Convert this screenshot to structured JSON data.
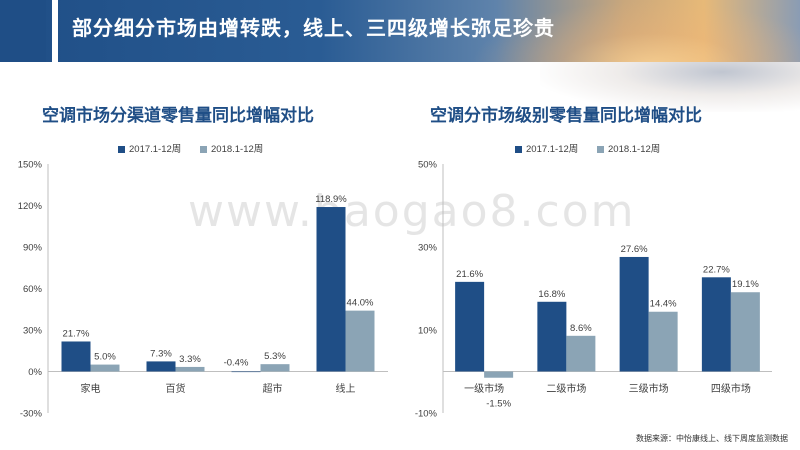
{
  "header": {
    "title": "部分细分市场由增转跌，线上、三四级增长弥足珍贵"
  },
  "watermark": "www.baogao8.com",
  "source": "数据来源：中怡康线上、线下周度监测数据",
  "colors": {
    "series_2017": "#1f4e86",
    "series_2018": "#8ba4b5",
    "axis": "#bfbfbf",
    "text": "#404040",
    "header": "#1f4e86"
  },
  "chart_data": [
    {
      "type": "bar",
      "title": "空调市场分渠道零售量同比增幅对比",
      "categories": [
        "家电",
        "百货",
        "超市",
        "线上"
      ],
      "series": [
        {
          "name": "2017.1-12周",
          "values": [
            21.7,
            7.3,
            -0.4,
            118.9
          ],
          "labels": [
            "21.7%",
            "7.3%",
            "-0.4%",
            "118.9%"
          ]
        },
        {
          "name": "2018.1-12周",
          "values": [
            5.0,
            3.3,
            5.3,
            44.0
          ],
          "labels": [
            "5.0%",
            "3.3%",
            "5.3%",
            "44.0%"
          ]
        }
      ],
      "ylim": [
        -30,
        150
      ],
      "yticks": [
        -30,
        0,
        30,
        60,
        90,
        120,
        150
      ],
      "ytick_labels": [
        "-30%",
        "0%",
        "30%",
        "60%",
        "90%",
        "120%",
        "150%"
      ],
      "legend": "top-center",
      "grid": false
    },
    {
      "type": "bar",
      "title": "空调分市场级别零售量同比增幅对比",
      "categories": [
        "一级市场",
        "二级市场",
        "三级市场",
        "四级市场"
      ],
      "series": [
        {
          "name": "2017.1-12周",
          "values": [
            21.6,
            16.8,
            27.6,
            22.7
          ],
          "labels": [
            "21.6%",
            "16.8%",
            "27.6%",
            "22.7%"
          ]
        },
        {
          "name": "2018.1-12周",
          "values": [
            -1.5,
            8.6,
            14.4,
            19.1
          ],
          "labels": [
            "-1.5%",
            "8.6%",
            "14.4%",
            "19.1%"
          ]
        }
      ],
      "ylim": [
        -10,
        50
      ],
      "yticks": [
        -10,
        10,
        30,
        50
      ],
      "ytick_labels": [
        "-10%",
        "10%",
        "30%",
        "50%"
      ],
      "legend": "top-center",
      "grid": false
    }
  ]
}
